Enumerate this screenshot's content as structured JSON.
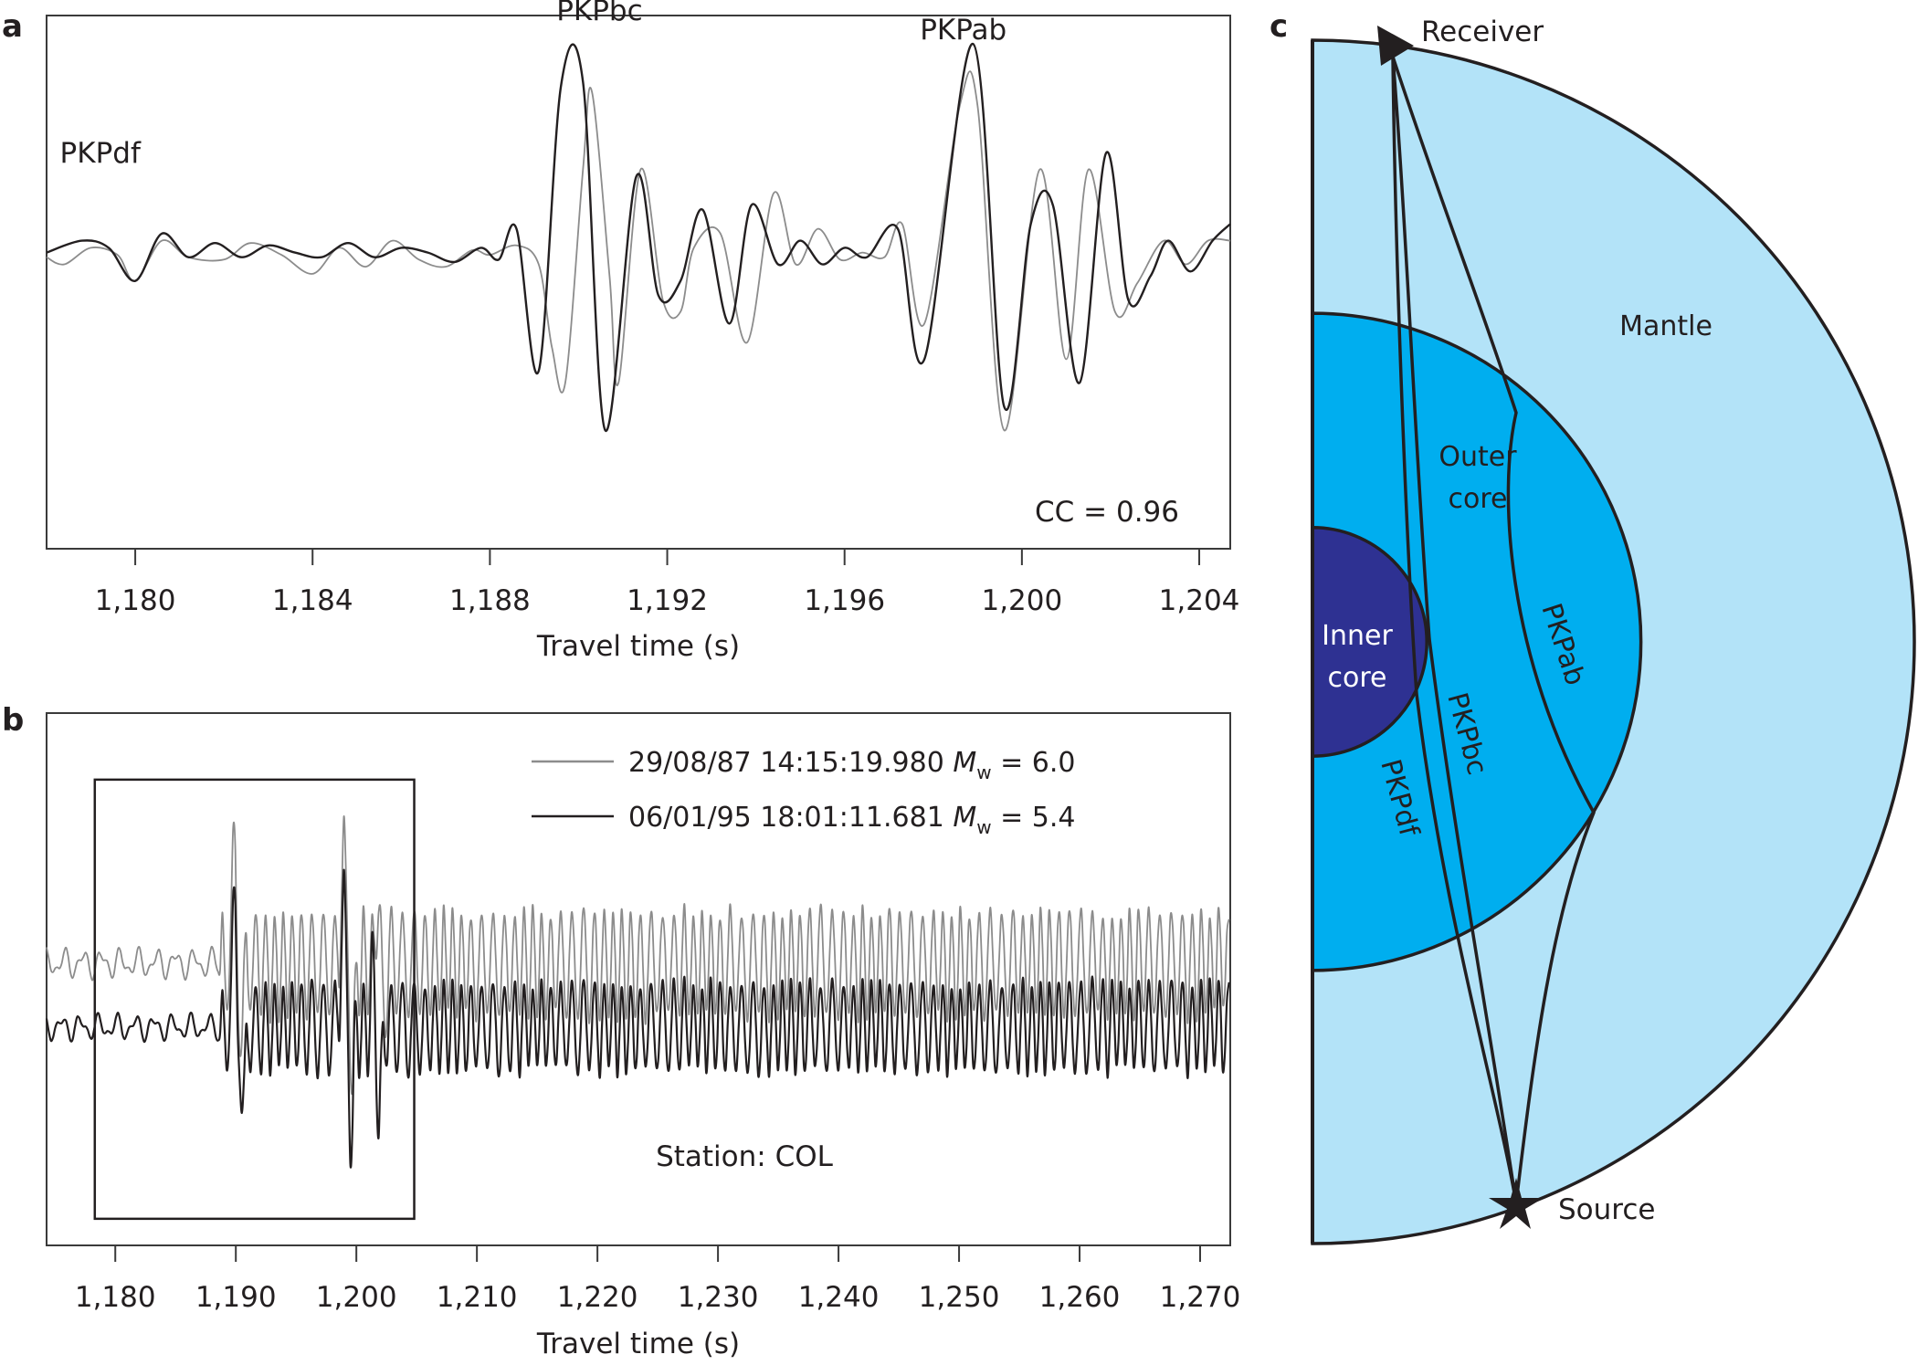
{
  "figure": {
    "panel_labels": {
      "a": "a",
      "b": "b",
      "c": "c"
    }
  },
  "chart_data": [
    {
      "panel": "a",
      "type": "line",
      "title": "",
      "xlabel": "Travel time (s)",
      "ylabel": "",
      "xlim": [
        1178.0,
        1204.7
      ],
      "ylim": [
        -1.25,
        1.0
      ],
      "xticks": [
        1180,
        1184,
        1188,
        1192,
        1196,
        1200,
        1204
      ],
      "xtick_labels": [
        "1,180",
        "1,184",
        "1,188",
        "1,192",
        "1,196",
        "1,200",
        "1,204"
      ],
      "grid": false,
      "phase_labels": [
        {
          "text": "PKPdf",
          "x": 1178.3,
          "y": 0.38
        },
        {
          "text": "PKPbc",
          "x": 1189.5,
          "y": 0.98
        },
        {
          "text": "PKPab",
          "x": 1197.7,
          "y": 0.9
        }
      ],
      "annotation": "CC = 0.96",
      "series": [
        {
          "name": "29/08/87 14:15:19.980 Mw = 6.0",
          "color": "#8c8c8c",
          "points": [
            [
              1178.0,
              -0.02
            ],
            [
              1178.4,
              -0.05
            ],
            [
              1179.0,
              0.02
            ],
            [
              1179.6,
              -0.01
            ],
            [
              1180.0,
              -0.12
            ],
            [
              1180.6,
              0.05
            ],
            [
              1181.2,
              -0.02
            ],
            [
              1182.0,
              -0.03
            ],
            [
              1182.6,
              0.04
            ],
            [
              1183.3,
              -0.01
            ],
            [
              1184.0,
              -0.09
            ],
            [
              1184.6,
              0.02
            ],
            [
              1185.2,
              -0.06
            ],
            [
              1185.8,
              0.05
            ],
            [
              1186.4,
              -0.03
            ],
            [
              1187.0,
              -0.06
            ],
            [
              1187.6,
              0.01
            ],
            [
              1188.0,
              -0.01
            ],
            [
              1188.6,
              0.03
            ],
            [
              1189.1,
              -0.05
            ],
            [
              1189.4,
              -0.4
            ],
            [
              1189.7,
              -0.55
            ],
            [
              1190.1,
              0.35
            ],
            [
              1190.3,
              0.68
            ],
            [
              1190.7,
              -0.1
            ],
            [
              1190.9,
              -0.55
            ],
            [
              1191.4,
              0.35
            ],
            [
              1191.9,
              -0.2
            ],
            [
              1192.3,
              -0.25
            ],
            [
              1192.6,
              0.02
            ],
            [
              1193.2,
              0.08
            ],
            [
              1193.8,
              -0.38
            ],
            [
              1194.4,
              0.25
            ],
            [
              1194.9,
              -0.05
            ],
            [
              1195.4,
              0.1
            ],
            [
              1195.9,
              -0.03
            ],
            [
              1196.4,
              0.0
            ],
            [
              1196.9,
              -0.02
            ],
            [
              1197.3,
              0.12
            ],
            [
              1197.8,
              -0.3
            ],
            [
              1198.6,
              0.62
            ],
            [
              1199.0,
              0.62
            ],
            [
              1199.6,
              -0.75
            ],
            [
              1200.4,
              0.35
            ],
            [
              1201.0,
              -0.45
            ],
            [
              1201.5,
              0.35
            ],
            [
              1202.1,
              -0.25
            ],
            [
              1202.6,
              -0.13
            ],
            [
              1203.2,
              0.05
            ],
            [
              1203.7,
              -0.05
            ],
            [
              1204.2,
              0.05
            ],
            [
              1204.7,
              0.05
            ]
          ]
        },
        {
          "name": "06/01/95 18:01:11.681 Mw = 5.4",
          "color": "#231f20",
          "points": [
            [
              1178.0,
              0.0
            ],
            [
              1178.8,
              0.05
            ],
            [
              1179.4,
              0.02
            ],
            [
              1180.0,
              -0.12
            ],
            [
              1180.6,
              0.08
            ],
            [
              1181.2,
              -0.02
            ],
            [
              1181.8,
              0.04
            ],
            [
              1182.4,
              -0.02
            ],
            [
              1183.0,
              0.03
            ],
            [
              1183.6,
              0.0
            ],
            [
              1184.2,
              -0.02
            ],
            [
              1184.8,
              0.04
            ],
            [
              1185.4,
              -0.02
            ],
            [
              1186.0,
              0.02
            ],
            [
              1186.6,
              0.0
            ],
            [
              1187.2,
              -0.04
            ],
            [
              1187.8,
              0.02
            ],
            [
              1188.2,
              -0.03
            ],
            [
              1188.6,
              0.1
            ],
            [
              1189.1,
              -0.5
            ],
            [
              1189.6,
              0.7
            ],
            [
              1190.1,
              0.72
            ],
            [
              1190.6,
              -0.75
            ],
            [
              1191.3,
              0.32
            ],
            [
              1191.8,
              -0.18
            ],
            [
              1192.3,
              -0.12
            ],
            [
              1192.8,
              0.18
            ],
            [
              1193.4,
              -0.3
            ],
            [
              1193.9,
              0.2
            ],
            [
              1194.5,
              -0.05
            ],
            [
              1195.0,
              0.05
            ],
            [
              1195.5,
              -0.05
            ],
            [
              1196.0,
              0.02
            ],
            [
              1196.5,
              -0.02
            ],
            [
              1197.2,
              0.1
            ],
            [
              1197.8,
              -0.45
            ],
            [
              1198.9,
              0.88
            ],
            [
              1199.6,
              -0.65
            ],
            [
              1200.2,
              0.12
            ],
            [
              1200.7,
              0.2
            ],
            [
              1201.3,
              -0.55
            ],
            [
              1201.9,
              0.42
            ],
            [
              1202.4,
              -0.2
            ],
            [
              1202.9,
              -0.1
            ],
            [
              1203.3,
              0.05
            ],
            [
              1203.8,
              -0.08
            ],
            [
              1204.3,
              0.05
            ],
            [
              1204.7,
              0.12
            ]
          ]
        }
      ]
    },
    {
      "panel": "b",
      "type": "line",
      "title": "",
      "xlabel": "Travel time (s)",
      "ylabel": "",
      "xlim": [
        1174.3,
        1272.5
      ],
      "ylim": [
        -1.0,
        1.0
      ],
      "xticks": [
        1180,
        1190,
        1200,
        1210,
        1220,
        1230,
        1240,
        1250,
        1260,
        1270
      ],
      "xtick_labels": [
        "1,180",
        "1,190",
        "1,200",
        "1,210",
        "1,220",
        "1,230",
        "1,240",
        "1,250",
        "1,260",
        "1,270"
      ],
      "grid": false,
      "legend": {
        "placement": "top-right",
        "entries": [
          {
            "prefix": "29/08/87 14:15:19.980 ",
            "mag_symbol": "M",
            "mag_sub": "w",
            "suffix": " = 6.0",
            "color": "#8c8c8c"
          },
          {
            "prefix": "06/01/95 18:01:11.681 ",
            "mag_symbol": "M",
            "mag_sub": "w",
            "suffix": " = 5.4",
            "color": "#231f20"
          }
        ]
      },
      "zoom_box": {
        "x_range": [
          1178.3,
          1204.8
        ],
        "y_range": [
          -0.9,
          0.75
        ]
      },
      "annotation": "Station: COL",
      "series": [
        {
          "name": "29/08/87 14:15:19.980 Mw = 6.0",
          "color": "#8c8c8c",
          "offset": 0.24,
          "onset": 1188.8,
          "noise_amp": 0.04,
          "coda_amp": 0.2,
          "big_peaks": [
            [
              1189.9,
              0.42
            ],
            [
              1190.5,
              -0.32
            ],
            [
              1198.9,
              0.5
            ],
            [
              1199.7,
              -0.45
            ],
            [
              1201.8,
              0.28
            ],
            [
              1202.2,
              -0.2
            ]
          ]
        },
        {
          "name": "06/01/95 18:01:11.681 Mw = 5.4",
          "color": "#231f20",
          "offset": 0.0,
          "onset": 1188.8,
          "noise_amp": 0.035,
          "coda_amp": 0.17,
          "big_peaks": [
            [
              1189.9,
              0.45
            ],
            [
              1190.6,
              -0.42
            ],
            [
              1198.9,
              0.55
            ],
            [
              1199.6,
              -0.4
            ],
            [
              1201.4,
              0.2
            ],
            [
              1201.9,
              -0.38
            ]
          ]
        }
      ]
    }
  ],
  "diagram": {
    "type": "earth-cross-section",
    "colors": {
      "mantle": "#b3e3f8",
      "outer_core": "#00aeef",
      "inner_core": "#2e3192",
      "outline": "#231f20"
    },
    "radius_ratios": {
      "outer_core": 0.546,
      "inner_core": 0.19
    },
    "regions": [
      {
        "name": "Mantle",
        "label": "Mantle"
      },
      {
        "name": "Outer core",
        "label_lines": [
          "Outer",
          "core"
        ]
      },
      {
        "name": "Inner core",
        "label_lines": [
          "Inner",
          "core"
        ]
      }
    ],
    "ray_labels": [
      "PKPdf",
      "PKPbc",
      "PKPab"
    ],
    "endpoints": {
      "receiver": "Receiver",
      "source": "Source"
    }
  }
}
